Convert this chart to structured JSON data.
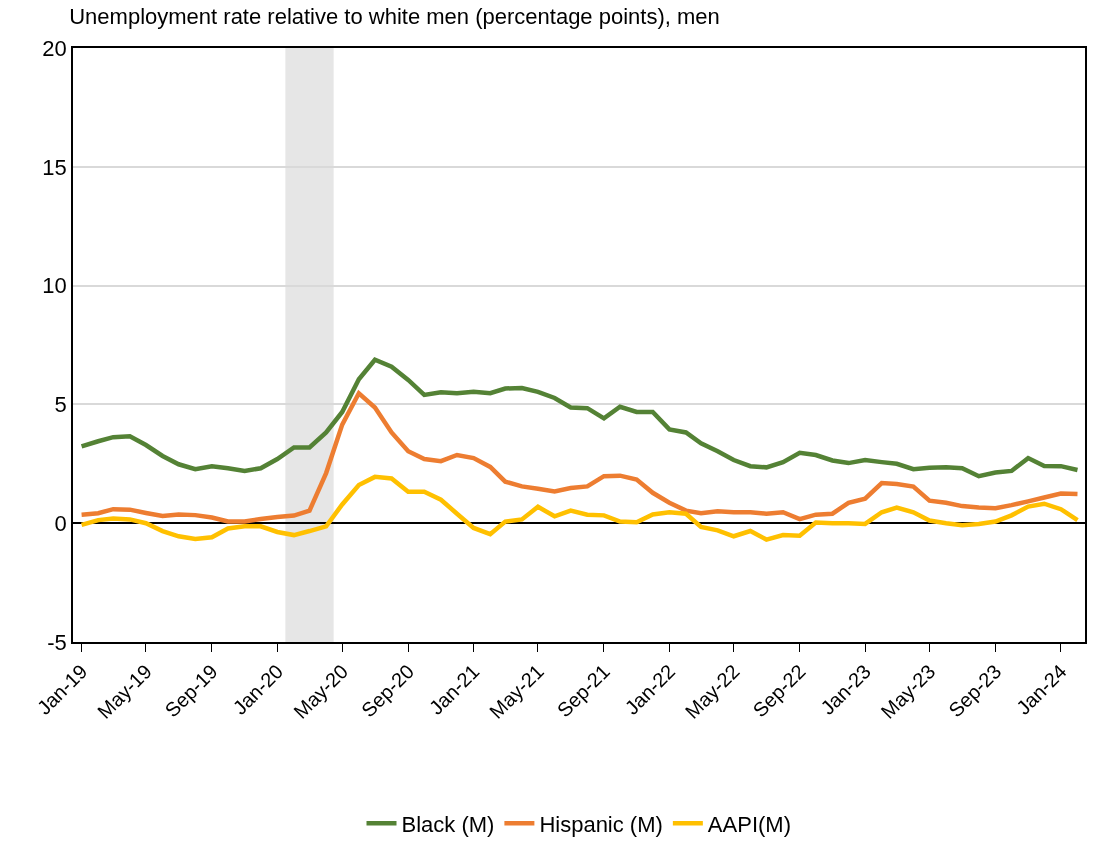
{
  "chart_data": {
    "type": "line",
    "title": "Unemployment rate relative to white men (percentage points), men",
    "x": [
      "2019-01",
      "2019-02",
      "2019-03",
      "2019-04",
      "2019-05",
      "2019-06",
      "2019-07",
      "2019-08",
      "2019-09",
      "2019-10",
      "2019-11",
      "2019-12",
      "2020-01",
      "2020-02",
      "2020-03",
      "2020-04",
      "2020-05",
      "2020-06",
      "2020-07",
      "2020-08",
      "2020-09",
      "2020-10",
      "2020-11",
      "2020-12",
      "2021-01",
      "2021-02",
      "2021-03",
      "2021-04",
      "2021-05",
      "2021-06",
      "2021-07",
      "2021-08",
      "2021-09",
      "2021-10",
      "2021-11",
      "2021-12",
      "2022-01",
      "2022-02",
      "2022-03",
      "2022-04",
      "2022-05",
      "2022-06",
      "2022-07",
      "2022-08",
      "2022-09",
      "2022-10",
      "2022-11",
      "2022-12",
      "2023-01",
      "2023-02",
      "2023-03",
      "2023-04",
      "2023-05",
      "2023-06",
      "2023-07",
      "2023-08",
      "2023-09",
      "2023-10",
      "2023-11",
      "2023-12",
      "2024-01",
      "2024-02"
    ],
    "series": [
      {
        "name": "Black (M)",
        "color": "#548235",
        "values": [
          3.23,
          3.45,
          3.62,
          3.66,
          3.29,
          2.83,
          2.48,
          2.27,
          2.4,
          2.31,
          2.2,
          2.31,
          2.7,
          3.19,
          3.19,
          3.82,
          4.68,
          6.06,
          6.88,
          6.59,
          6.03,
          5.4,
          5.51,
          5.47,
          5.53,
          5.47,
          5.67,
          5.69,
          5.53,
          5.27,
          4.87,
          4.84,
          4.41,
          4.9,
          4.68,
          4.68,
          3.95,
          3.82,
          3.36,
          3.03,
          2.66,
          2.4,
          2.35,
          2.57,
          2.96,
          2.87,
          2.64,
          2.53,
          2.66,
          2.57,
          2.5,
          2.27,
          2.33,
          2.35,
          2.31,
          1.98,
          2.13,
          2.2,
          2.74,
          2.41,
          2.4,
          2.24
        ]
      },
      {
        "name": "Hispanic (M)",
        "color": "#ed7d31",
        "values": [
          0.36,
          0.42,
          0.59,
          0.57,
          0.43,
          0.3,
          0.37,
          0.34,
          0.24,
          0.07,
          0.07,
          0.18,
          0.26,
          0.32,
          0.53,
          2.11,
          4.15,
          5.47,
          4.87,
          3.82,
          3.03,
          2.7,
          2.61,
          2.87,
          2.74,
          2.37,
          1.75,
          1.55,
          1.45,
          1.34,
          1.48,
          1.55,
          1.98,
          2.0,
          1.84,
          1.28,
          0.86,
          0.53,
          0.42,
          0.5,
          0.46,
          0.46,
          0.4,
          0.46,
          0.17,
          0.36,
          0.4,
          0.86,
          1.03,
          1.69,
          1.65,
          1.54,
          0.95,
          0.86,
          0.72,
          0.66,
          0.63,
          0.76,
          0.92,
          1.08,
          1.25,
          1.23
        ]
      },
      {
        "name": "AAPI(M)",
        "color": "#ffc000",
        "values": [
          -0.07,
          0.13,
          0.2,
          0.16,
          0.0,
          -0.33,
          -0.55,
          -0.66,
          -0.59,
          -0.22,
          -0.13,
          -0.13,
          -0.37,
          -0.5,
          -0.33,
          -0.13,
          0.79,
          1.61,
          1.95,
          1.88,
          1.32,
          1.32,
          0.99,
          0.4,
          -0.2,
          -0.46,
          0.07,
          0.16,
          0.69,
          0.29,
          0.53,
          0.36,
          0.33,
          0.07,
          0.04,
          0.37,
          0.46,
          0.4,
          -0.16,
          -0.3,
          -0.55,
          -0.33,
          -0.69,
          -0.5,
          -0.53,
          0.03,
          0.0,
          0.0,
          -0.03,
          0.46,
          0.66,
          0.46,
          0.11,
          0.0,
          -0.09,
          -0.03,
          0.07,
          0.33,
          0.7,
          0.82,
          0.59,
          0.13
        ]
      }
    ],
    "xlim": [
      "2018-12-16",
      "2024-02-15"
    ],
    "xticks": [
      {
        "value": "2019-01",
        "label": "Jan-19"
      },
      {
        "value": "2019-05",
        "label": "May-19"
      },
      {
        "value": "2019-09",
        "label": "Sep-19"
      },
      {
        "value": "2020-01",
        "label": "Jan-20"
      },
      {
        "value": "2020-05",
        "label": "May-20"
      },
      {
        "value": "2020-09",
        "label": "Sep-20"
      },
      {
        "value": "2021-01",
        "label": "Jan-21"
      },
      {
        "value": "2021-05",
        "label": "May-21"
      },
      {
        "value": "2021-09",
        "label": "Sep-21"
      },
      {
        "value": "2022-01",
        "label": "Jan-22"
      },
      {
        "value": "2022-05",
        "label": "May-22"
      },
      {
        "value": "2022-09",
        "label": "Sep-22"
      },
      {
        "value": "2023-01",
        "label": "Jan-23"
      },
      {
        "value": "2023-05",
        "label": "May-23"
      },
      {
        "value": "2023-09",
        "label": "Sep-23"
      },
      {
        "value": "2024-01",
        "label": "Jan-24"
      }
    ],
    "ylim": [
      -5,
      20
    ],
    "yticks": [
      -5,
      0,
      5,
      10,
      15,
      20
    ],
    "grid": "y",
    "legend": "bottom",
    "marker": "none",
    "line_style": "solid",
    "bands": [
      {
        "axis": "x",
        "from": "2020-01-16",
        "to": "2020-04-15",
        "color": "#e6e6e6"
      }
    ]
  }
}
